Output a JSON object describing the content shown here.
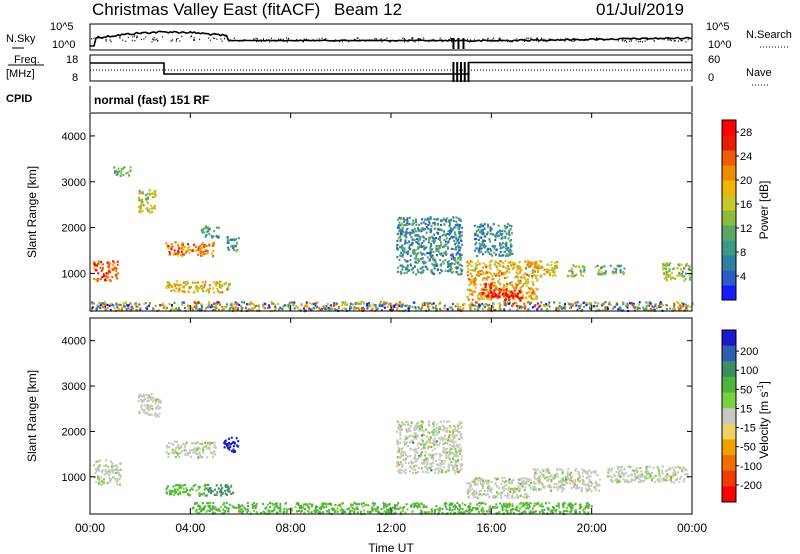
{
  "header": {
    "title": "Christmas Valley East (fitACF)",
    "beam": "Beam 12",
    "date": "01/Jul/2019"
  },
  "status_panel": {
    "nsky_label": "N.Sky",
    "nsearch_label": "N.Search",
    "freq_label_1": "Freq.",
    "freq_label_2": "[MHz]",
    "nave_label": "Nave",
    "cpid_label": "CPID",
    "cpid_text": "normal (fast) 151 RF",
    "noise_left_ticks": [
      "10^5",
      "10^0"
    ],
    "noise_right_ticks": [
      "10^5",
      "10^0"
    ],
    "freq_left_ticks": [
      "18",
      "8"
    ],
    "nave_right_ticks": [
      "60",
      "0"
    ]
  },
  "chart_data": [
    {
      "type": "heatmap",
      "xlabel": "",
      "ylabel": "Slant Range [km]",
      "x_ticks": [
        "00:00",
        "04:00",
        "08:00",
        "12:00",
        "16:00",
        "20:00",
        "00:00"
      ],
      "y_ticks": [
        1000,
        2000,
        3000,
        4000
      ],
      "xlim_hours": [
        0,
        24
      ],
      "ylim_km": [
        180,
        4500
      ],
      "colorbar": {
        "label": "Power [dB]",
        "ticks": [
          4,
          8,
          12,
          16,
          20,
          24,
          28
        ],
        "range": [
          0,
          30
        ],
        "colors": [
          "#1a1aff",
          "#2c5cc4",
          "#2f7fa0",
          "#3d9a82",
          "#5aa664",
          "#8cbc3c",
          "#c8c828",
          "#f0b40a",
          "#f08c00",
          "#f05a00",
          "#e81c00",
          "#ff0000"
        ]
      },
      "regions": [
        {
          "t0": 0.1,
          "t1": 1.1,
          "r0": 850,
          "r1": 1300,
          "power": 24
        },
        {
          "t0": 0.9,
          "t1": 1.6,
          "r0": 3150,
          "r1": 3350,
          "power": 11
        },
        {
          "t0": 1.9,
          "t1": 2.6,
          "r0": 2350,
          "r1": 2850,
          "power": 16
        },
        {
          "t0": 3.0,
          "t1": 4.9,
          "r0": 1400,
          "r1": 1700,
          "power": 22
        },
        {
          "t0": 3.0,
          "t1": 5.6,
          "r0": 600,
          "r1": 850,
          "power": 18
        },
        {
          "t0": 4.4,
          "t1": 5.1,
          "r0": 1800,
          "r1": 2050,
          "power": 9
        },
        {
          "t0": 5.4,
          "t1": 5.9,
          "r0": 1500,
          "r1": 1850,
          "power": 9
        },
        {
          "t0": 12.2,
          "t1": 14.8,
          "r0": 1000,
          "r1": 2250,
          "power": 8
        },
        {
          "t0": 15.3,
          "t1": 16.8,
          "r0": 1400,
          "r1": 2100,
          "power": 8
        },
        {
          "t0": 15.0,
          "t1": 17.8,
          "r0": 450,
          "r1": 1300,
          "power": 19
        },
        {
          "t0": 15.6,
          "t1": 16.6,
          "r0": 500,
          "r1": 800,
          "power": 28
        },
        {
          "t0": 16.5,
          "t1": 17.2,
          "r0": 350,
          "r1": 650,
          "power": 29
        },
        {
          "t0": 17.6,
          "t1": 18.6,
          "r0": 950,
          "r1": 1300,
          "power": 17
        },
        {
          "t0": 19.0,
          "t1": 19.7,
          "r0": 950,
          "r1": 1200,
          "power": 14
        },
        {
          "t0": 20.1,
          "t1": 21.3,
          "r0": 1000,
          "r1": 1200,
          "power": 12
        },
        {
          "t0": 22.8,
          "t1": 23.9,
          "r0": 850,
          "r1": 1250,
          "power": 14
        },
        {
          "t0": 0.0,
          "t1": 24.0,
          "r0": 200,
          "r1": 400,
          "power": 8
        }
      ]
    },
    {
      "type": "heatmap",
      "xlabel": "Time UT",
      "ylabel": "Slant Range [km]",
      "x_ticks": [
        "00:00",
        "04:00",
        "08:00",
        "12:00",
        "16:00",
        "20:00",
        "00:00"
      ],
      "y_ticks": [
        1000,
        2000,
        3000,
        4000
      ],
      "xlim_hours": [
        0,
        24
      ],
      "ylim_km": [
        180,
        4500
      ],
      "colorbar": {
        "label": "Velocity [m s^-1]",
        "ticks": [
          200,
          100,
          50,
          15,
          -15,
          -50,
          -100,
          -200
        ],
        "colors": [
          "#1a1acc",
          "#2f5fb4",
          "#3c8c64",
          "#50b43c",
          "#78d23c",
          "#c8c8c0",
          "#f0d264",
          "#f0a000",
          "#f06e00",
          "#f03c00",
          "#ff0000"
        ]
      },
      "regions": [
        {
          "t0": 0.1,
          "t1": 1.2,
          "r0": 850,
          "r1": 1400,
          "velocity": 0
        },
        {
          "t0": 1.9,
          "t1": 2.8,
          "r0": 2350,
          "r1": 2850,
          "velocity": 0
        },
        {
          "t0": 3.0,
          "t1": 5.0,
          "r0": 1450,
          "r1": 1800,
          "velocity": 0
        },
        {
          "t0": 3.0,
          "t1": 4.6,
          "r0": 600,
          "r1": 850,
          "velocity": 20
        },
        {
          "t0": 4.6,
          "t1": 5.7,
          "r0": 600,
          "r1": 850,
          "velocity": 70
        },
        {
          "t0": 5.3,
          "t1": 5.9,
          "r0": 1550,
          "r1": 1900,
          "velocity": 220
        },
        {
          "t0": 12.2,
          "t1": 14.8,
          "r0": 1100,
          "r1": 2250,
          "velocity": 0
        },
        {
          "t0": 15.0,
          "t1": 17.6,
          "r0": 550,
          "r1": 1000,
          "velocity": 0
        },
        {
          "t0": 17.6,
          "t1": 20.3,
          "r0": 700,
          "r1": 1200,
          "velocity": 0
        },
        {
          "t0": 20.6,
          "t1": 23.8,
          "r0": 900,
          "r1": 1250,
          "velocity": 0
        },
        {
          "t0": 4.0,
          "t1": 20.0,
          "r0": 200,
          "r1": 450,
          "velocity": 30
        }
      ]
    }
  ]
}
